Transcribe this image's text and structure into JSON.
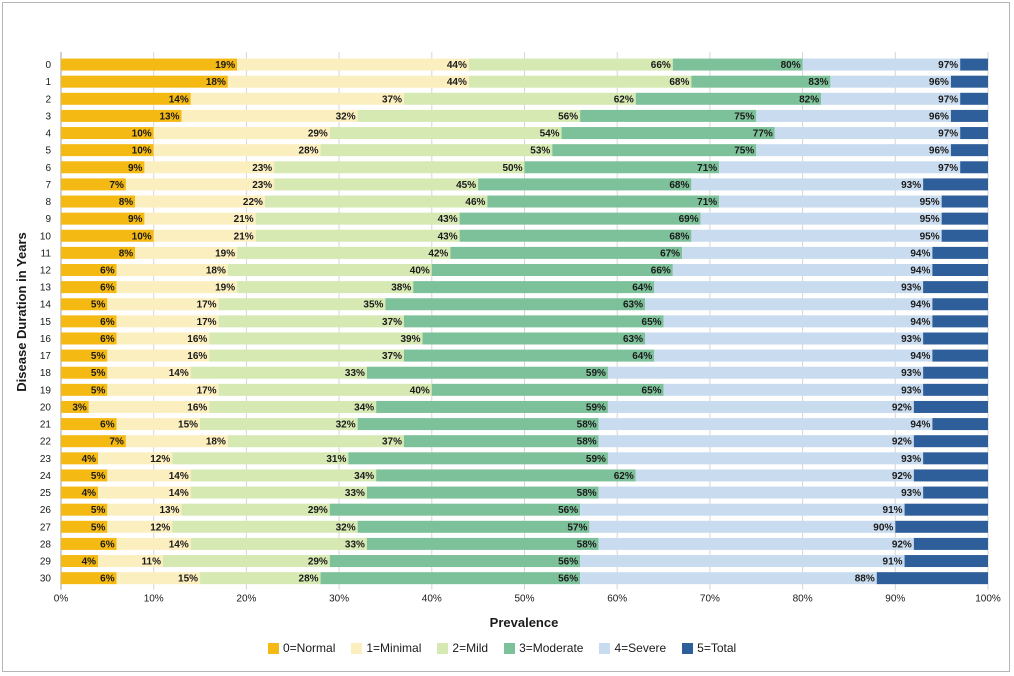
{
  "chart_data": {
    "type": "bar",
    "orientation": "horizontal",
    "stacked": true,
    "title": "",
    "xlabel": "Prevalence",
    "ylabel": "Disease Duration in Years",
    "xlim": [
      0,
      100
    ],
    "x_ticks": [
      "0%",
      "10%",
      "20%",
      "30%",
      "40%",
      "50%",
      "60%",
      "70%",
      "80%",
      "90%",
      "100%"
    ],
    "categories": [
      "0",
      "1",
      "2",
      "3",
      "4",
      "5",
      "6",
      "7",
      "8",
      "9",
      "10",
      "11",
      "12",
      "13",
      "14",
      "15",
      "16",
      "17",
      "18",
      "19",
      "20",
      "21",
      "22",
      "23",
      "24",
      "25",
      "26",
      "27",
      "28",
      "29",
      "30"
    ],
    "series": [
      {
        "name": "0=Normal",
        "color": "#F5B914"
      },
      {
        "name": "1=Minimal",
        "color": "#FCEFBF"
      },
      {
        "name": "2=Mild",
        "color": "#D6E9B3"
      },
      {
        "name": "3=Moderate",
        "color": "#7DC19A"
      },
      {
        "name": "4=Severe",
        "color": "#C9DCEF"
      },
      {
        "name": "5=Total",
        "color": "#2F5F9B"
      }
    ],
    "cumulative_values": [
      [
        19,
        44,
        66,
        80,
        97
      ],
      [
        18,
        44,
        68,
        83,
        96
      ],
      [
        14,
        37,
        62,
        82,
        97
      ],
      [
        13,
        32,
        56,
        75,
        96
      ],
      [
        10,
        29,
        54,
        77,
        97
      ],
      [
        10,
        28,
        53,
        75,
        96
      ],
      [
        9,
        23,
        50,
        71,
        97
      ],
      [
        7,
        23,
        45,
        68,
        93
      ],
      [
        8,
        22,
        46,
        71,
        95
      ],
      [
        9,
        21,
        43,
        69,
        95
      ],
      [
        10,
        21,
        43,
        68,
        95
      ],
      [
        8,
        19,
        42,
        67,
        94
      ],
      [
        6,
        18,
        40,
        66,
        94
      ],
      [
        6,
        19,
        38,
        64,
        93
      ],
      [
        5,
        17,
        35,
        63,
        94
      ],
      [
        6,
        17,
        37,
        65,
        94
      ],
      [
        6,
        16,
        39,
        63,
        93
      ],
      [
        5,
        16,
        37,
        64,
        94
      ],
      [
        5,
        14,
        33,
        59,
        93
      ],
      [
        5,
        17,
        40,
        65,
        93
      ],
      [
        3,
        16,
        34,
        59,
        92
      ],
      [
        6,
        15,
        32,
        58,
        94
      ],
      [
        7,
        18,
        37,
        58,
        92
      ],
      [
        4,
        12,
        31,
        59,
        93
      ],
      [
        5,
        14,
        34,
        62,
        92
      ],
      [
        4,
        14,
        33,
        58,
        93
      ],
      [
        5,
        13,
        29,
        56,
        91
      ],
      [
        5,
        12,
        32,
        57,
        90
      ],
      [
        6,
        14,
        33,
        58,
        92
      ],
      [
        4,
        11,
        29,
        56,
        91
      ],
      [
        6,
        15,
        28,
        56,
        88
      ]
    ]
  }
}
